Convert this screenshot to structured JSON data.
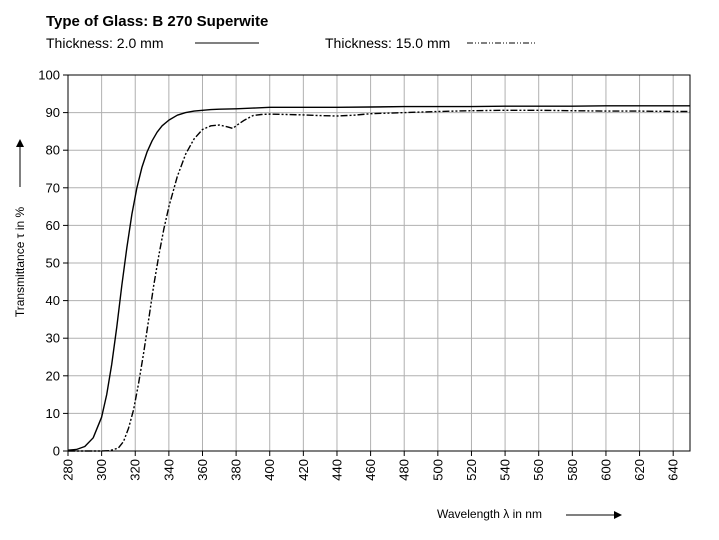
{
  "chart_data": {
    "type": "line",
    "title": "Type of Glass: B 270  Superwite",
    "xlabel": "Wavelength λ in nm",
    "ylabel": "Transmittance τ  in %",
    "xlim": [
      280,
      650
    ],
    "ylim": [
      0,
      100
    ],
    "x_ticks": [
      280,
      300,
      320,
      340,
      360,
      380,
      400,
      420,
      440,
      460,
      480,
      500,
      520,
      540,
      560,
      580,
      600,
      620,
      640
    ],
    "y_ticks": [
      0,
      10,
      20,
      30,
      40,
      50,
      60,
      70,
      80,
      90,
      100
    ],
    "grid": true,
    "legend_position": "top",
    "series": [
      {
        "name": "Thickness: 2.0 mm",
        "line_style": "solid",
        "color": "#000000",
        "x": [
          280,
          285,
          290,
          295,
          300,
          303,
          306,
          309,
          312,
          315,
          318,
          321,
          324,
          327,
          330,
          333,
          336,
          340,
          345,
          350,
          355,
          360,
          365,
          370,
          380,
          390,
          400,
          420,
          440,
          460,
          480,
          500,
          520,
          540,
          560,
          580,
          600,
          620,
          640,
          650
        ],
        "y": [
          0.2,
          0.4,
          1.2,
          3.5,
          9,
          15,
          23,
          33,
          44,
          54,
          63,
          70,
          75.5,
          79.5,
          82.5,
          84.8,
          86.5,
          88,
          89.3,
          90,
          90.4,
          90.6,
          90.8,
          90.9,
          91,
          91.2,
          91.4,
          91.4,
          91.4,
          91.5,
          91.6,
          91.6,
          91.6,
          91.7,
          91.7,
          91.7,
          91.8,
          91.8,
          91.8,
          91.8
        ]
      },
      {
        "name": "Thickness: 15.0 mm",
        "line_style": "dash-dot-dot",
        "color": "#000000",
        "x": [
          280,
          290,
          300,
          305,
          310,
          313,
          316,
          319,
          322,
          325,
          328,
          331,
          334,
          337,
          340,
          345,
          350,
          355,
          360,
          365,
          370,
          375,
          378,
          381,
          385,
          390,
          395,
          400,
          410,
          420,
          430,
          440,
          450,
          460,
          480,
          500,
          520,
          540,
          560,
          580,
          600,
          620,
          640,
          650
        ],
        "y": [
          0,
          0,
          0,
          0.1,
          0.8,
          2.5,
          6,
          11,
          18,
          26,
          35,
          44,
          52,
          59,
          65,
          73,
          79,
          83,
          85.5,
          86.5,
          86.7,
          86.2,
          85.8,
          86.8,
          88,
          89.2,
          89.5,
          89.6,
          89.5,
          89.4,
          89.2,
          89.1,
          89.3,
          89.7,
          90,
          90.3,
          90.5,
          90.6,
          90.6,
          90.5,
          90.4,
          90.4,
          90.3,
          90.3
        ]
      }
    ]
  }
}
